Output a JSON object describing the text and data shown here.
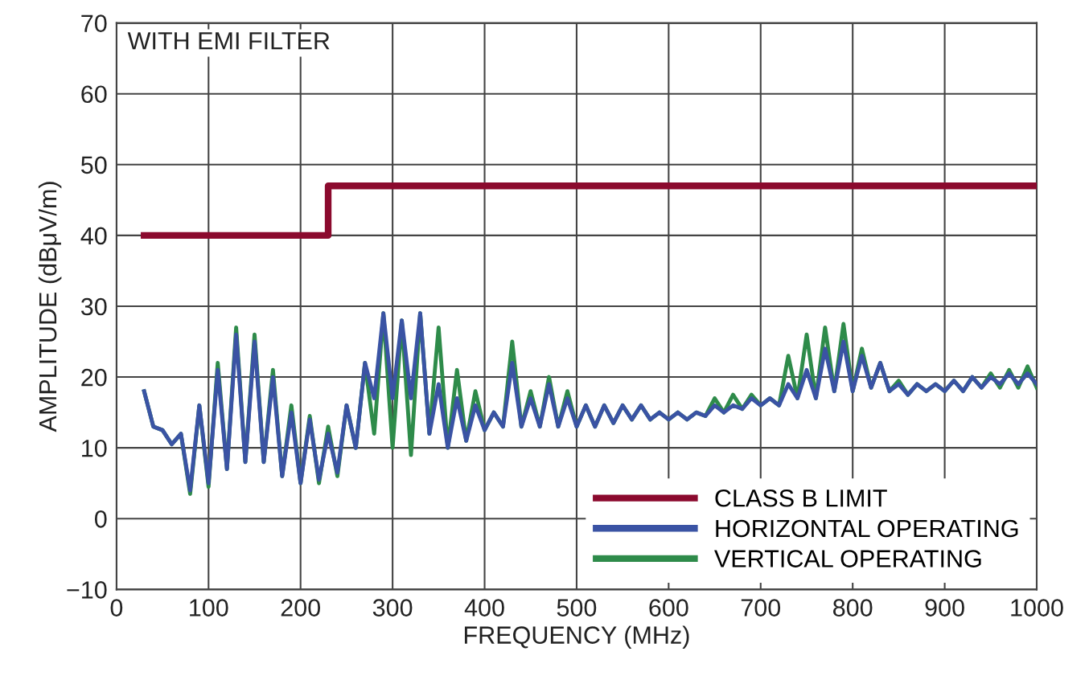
{
  "chart_data": {
    "type": "line",
    "xlabel": "FREQUENCY (MHz)",
    "ylabel": "AMPLITUDE (dBμV/m)",
    "annotations": [
      "WITH EMI FILTER"
    ],
    "xlim": [
      0,
      1000
    ],
    "xticks": [
      0,
      100,
      200,
      300,
      400,
      500,
      600,
      700,
      800,
      900,
      1000
    ],
    "ylim": [
      -10,
      70
    ],
    "yticks": [
      {
        "value": -10,
        "label": "−10"
      },
      0,
      10,
      20,
      30,
      40,
      50,
      60,
      70
    ],
    "grid": true,
    "legend": "bottom right",
    "series": [
      {
        "name": "CLASS B LIMIT",
        "type": "step",
        "color": "#8b0a2e",
        "x": [
          30,
          230,
          1000
        ],
        "values": [
          40,
          47,
          47
        ]
      },
      {
        "name": "HORIZONTAL OPERATING",
        "color": "#3a53a4",
        "x": [
          30,
          40,
          50,
          60,
          70,
          80,
          90,
          100,
          110,
          120,
          130,
          140,
          150,
          160,
          170,
          180,
          190,
          200,
          210,
          220,
          230,
          240,
          250,
          260,
          270,
          280,
          290,
          300,
          310,
          320,
          330,
          340,
          350,
          360,
          370,
          380,
          390,
          400,
          410,
          420,
          430,
          440,
          450,
          460,
          470,
          480,
          490,
          500,
          510,
          520,
          530,
          540,
          550,
          560,
          570,
          580,
          590,
          600,
          610,
          620,
          630,
          640,
          650,
          660,
          670,
          680,
          690,
          700,
          710,
          720,
          730,
          740,
          750,
          760,
          770,
          780,
          790,
          800,
          810,
          820,
          830,
          840,
          850,
          860,
          870,
          880,
          890,
          900,
          910,
          920,
          930,
          940,
          950,
          960,
          970,
          980,
          990,
          1000
        ],
        "values": [
          18,
          13,
          12.5,
          10.5,
          12,
          4,
          16,
          5,
          21,
          7,
          26,
          8,
          25,
          8,
          20,
          6,
          15,
          5,
          14,
          5.5,
          12,
          6.5,
          16,
          10,
          22,
          17,
          29,
          17,
          28,
          17,
          29,
          12,
          19,
          10,
          17,
          11,
          16,
          12.5,
          15,
          13,
          22,
          13,
          17,
          13,
          19,
          13,
          17,
          13,
          16,
          13,
          16,
          13.5,
          16,
          14,
          16,
          14,
          15,
          14,
          15,
          14,
          15,
          14.5,
          16,
          15,
          16,
          15.5,
          17,
          16,
          17,
          16,
          19,
          17,
          21,
          17,
          24,
          18,
          25,
          18,
          23,
          18.5,
          22,
          18,
          19,
          17.5,
          19,
          18,
          19,
          18,
          19.5,
          18,
          20,
          18.5,
          20,
          19,
          20.5,
          19,
          20.5,
          19
        ]
      },
      {
        "name": "VERTICAL OPERATING",
        "color": "#2e8b4a",
        "x": [
          30,
          40,
          50,
          60,
          70,
          80,
          90,
          100,
          110,
          120,
          130,
          140,
          150,
          160,
          170,
          180,
          190,
          200,
          210,
          220,
          230,
          240,
          250,
          260,
          270,
          280,
          290,
          300,
          310,
          320,
          330,
          340,
          350,
          360,
          370,
          380,
          390,
          400,
          410,
          420,
          430,
          440,
          450,
          460,
          470,
          480,
          490,
          500,
          510,
          520,
          530,
          540,
          550,
          560,
          570,
          580,
          590,
          600,
          610,
          620,
          630,
          640,
          650,
          660,
          670,
          680,
          690,
          700,
          710,
          720,
          730,
          740,
          750,
          760,
          770,
          780,
          790,
          800,
          810,
          820,
          830,
          840,
          850,
          860,
          870,
          880,
          890,
          900,
          910,
          920,
          930,
          940,
          950,
          960,
          970,
          980,
          990,
          1000
        ],
        "values": [
          18,
          13,
          12.5,
          10.5,
          12,
          3.5,
          16,
          4.5,
          22,
          7,
          27,
          8,
          26,
          8,
          21,
          6,
          16,
          5,
          14.5,
          5,
          13,
          6,
          16,
          10,
          22,
          12,
          29,
          10,
          28,
          9,
          29,
          12,
          27,
          10,
          21,
          11,
          18,
          12.5,
          15,
          13,
          25,
          13,
          18,
          13,
          20,
          13,
          18,
          13,
          16,
          13,
          16,
          13.5,
          16,
          14,
          16,
          14,
          15,
          14,
          15,
          14,
          15,
          14.5,
          17,
          15,
          17.5,
          15.5,
          17.5,
          16,
          17,
          16,
          23,
          17,
          26,
          17,
          27,
          18,
          27.5,
          18,
          24,
          18.5,
          22,
          18,
          19.5,
          17.5,
          19,
          18,
          19,
          18,
          19.5,
          18,
          20,
          18.5,
          20.5,
          18.5,
          21,
          18.5,
          21.5,
          18.5
        ]
      }
    ]
  }
}
